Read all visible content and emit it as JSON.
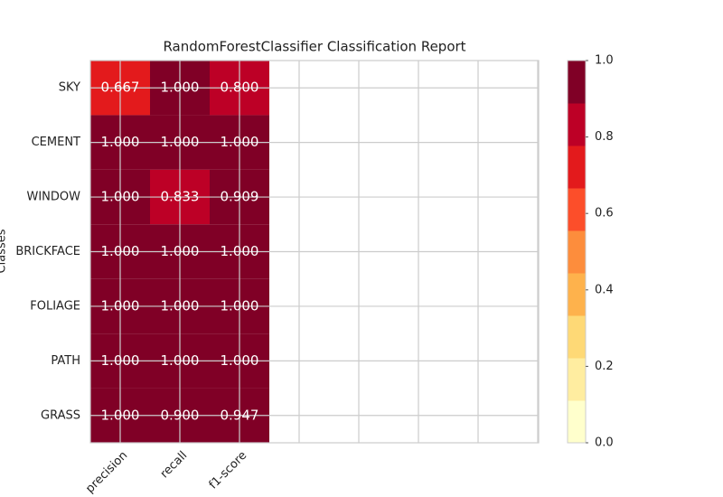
{
  "chart_data": {
    "type": "heatmap",
    "title": "RandomForestClassifier Classification Report",
    "ylabel": "Classes",
    "x_categories": [
      "precision",
      "recall",
      "f1-score"
    ],
    "y_categories": [
      "SKY",
      "CEMENT",
      "WINDOW",
      "BRICKFACE",
      "FOLIAGE",
      "PATH",
      "GRASS"
    ],
    "values": [
      [
        0.667,
        1,
        0.8
      ],
      [
        1,
        1,
        1
      ],
      [
        1,
        0.833,
        0.909
      ],
      [
        1,
        1,
        1
      ],
      [
        1,
        1,
        1
      ],
      [
        1,
        1,
        1
      ],
      [
        1,
        0.9,
        0.947
      ]
    ],
    "value_labels": [
      [
        "0.667",
        "1.000",
        "0.800"
      ],
      [
        "1.000",
        "1.000",
        "1.000"
      ],
      [
        "1.000",
        "0.833",
        "0.909"
      ],
      [
        "1.000",
        "1.000",
        "1.000"
      ],
      [
        "1.000",
        "1.000",
        "1.000"
      ],
      [
        "1.000",
        "1.000",
        "1.000"
      ],
      [
        "1.000",
        "0.900",
        "0.947"
      ]
    ],
    "colormap": [
      "#ffffcc",
      "#ffeda0",
      "#fed976",
      "#feb24c",
      "#fd8d3c",
      "#fc4e2a",
      "#e31a1c",
      "#bd0026",
      "#800026"
    ],
    "clim": [
      0,
      1
    ],
    "cticks": [
      {
        "value": 0,
        "label": "0.0"
      },
      0.2,
      0.4,
      0.6,
      0.8,
      {
        "value": 1,
        "label": "1.0"
      }
    ],
    "grid": true
  }
}
